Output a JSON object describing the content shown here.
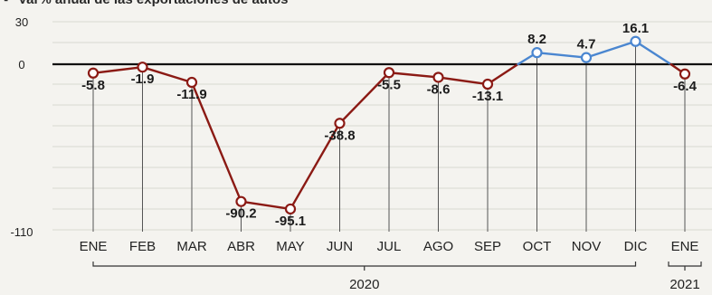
{
  "chart_data": {
    "type": "line",
    "title": "Var% anual de las exportaciones de autos",
    "title_marker": "▪",
    "ylim": [
      -110,
      30
    ],
    "y_ticks": [
      30,
      0,
      -110
    ],
    "y_tick_labels": [
      "30",
      "0",
      "-110"
    ],
    "categories": [
      "ENE",
      "FEB",
      "MAR",
      "ABR",
      "MAY",
      "JUN",
      "JUL",
      "AGO",
      "SEP",
      "OCT",
      "NOV",
      "DIC",
      "ENE"
    ],
    "values": [
      -5.8,
      -1.9,
      -11.9,
      -90.2,
      -95.1,
      -38.8,
      -5.5,
      -8.6,
      -13.1,
      8.2,
      4.7,
      16.1,
      -6.4
    ],
    "value_labels": [
      "-5.8",
      "-1.9",
      "-11.9",
      "-90.2",
      "-95.1",
      "-38.8",
      "-5.5",
      "-8.6",
      "-13.1",
      "8.2",
      "4.7",
      "16.1",
      "-6.4"
    ],
    "year_groups": [
      {
        "label": "2020",
        "start": 0,
        "end": 11
      },
      {
        "label": "2021",
        "start": 12,
        "end": 12
      }
    ],
    "colors": {
      "negative": "#8b1a14",
      "positive": "#4a86d0",
      "zero_line": "#111111",
      "grid": "#d9d8d2",
      "vertical": "#555555",
      "background": "#f4f3ef"
    },
    "grid": true
  }
}
